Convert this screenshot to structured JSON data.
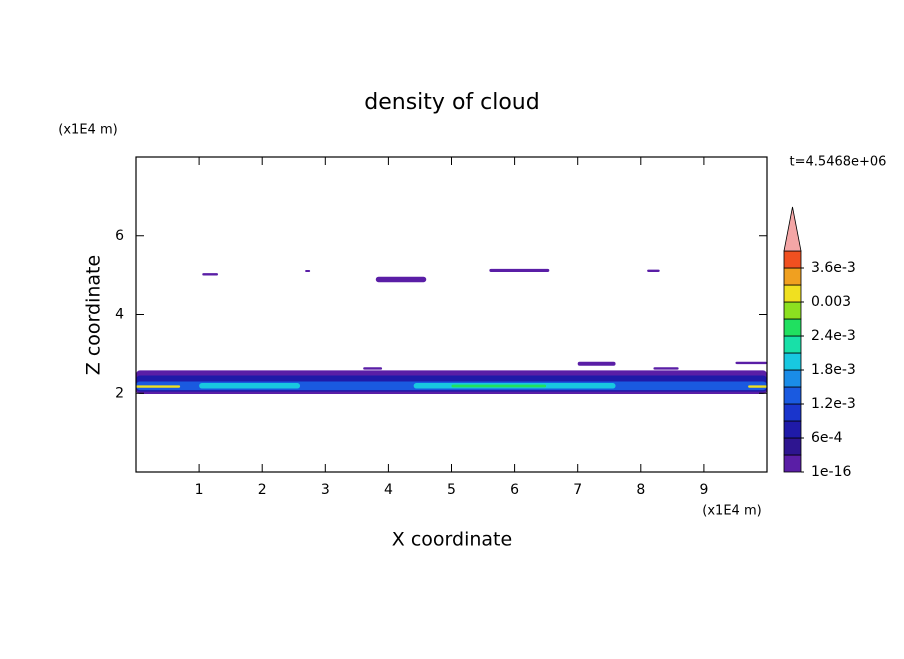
{
  "chart_data": {
    "type": "contour",
    "title": "density of cloud",
    "x_label": "X coordinate",
    "y_label": "Z coordinate",
    "x_unit": "(x1E4 m)",
    "y_unit": "(x1E4 m)",
    "time_label": "t=4.5468e+06",
    "xlim": [
      0,
      10
    ],
    "ylim": [
      0,
      8
    ],
    "xticks": [
      1,
      2,
      3,
      4,
      5,
      6,
      7,
      8,
      9
    ],
    "yticks": [
      2,
      4,
      6
    ],
    "levels": [
      1e-16,
      0.0003,
      0.0006,
      0.0009,
      0.0012,
      0.0015,
      0.0018,
      0.0021,
      0.0024,
      0.0027,
      0.003,
      0.0033,
      0.0036
    ],
    "colors": [
      "#5a1ea6",
      "#2e1590",
      "#1f1aa8",
      "#1a35cc",
      "#1a5ae0",
      "#1a8ce8",
      "#18c8e0",
      "#18e0a8",
      "#20e060",
      "#8ce020",
      "#f0e020",
      "#f0a020",
      "#f05020"
    ],
    "clim": [
      1e-16,
      0.0039
    ],
    "extend_color": "#f4a6a6",
    "cbar_ticks": [
      1e-16,
      0.0006,
      0.0012,
      0.0018,
      0.0024,
      0.003,
      0.0036
    ],
    "cbar_tick_labels": [
      "1e-16",
      "6e-4",
      "1.2e-3",
      "1.8e-3",
      "2.4e-3",
      "0.003",
      "3.6e-3"
    ],
    "regions": [
      {
        "x": [
          0,
          10
        ],
        "z": [
          1.98,
          2.58
        ],
        "level": 1e-16
      },
      {
        "x": [
          0,
          10
        ],
        "z": [
          2.04,
          2.45
        ],
        "level": 0.0006
      },
      {
        "x": [
          0,
          10
        ],
        "z": [
          2.08,
          2.3
        ],
        "level": 0.0012
      },
      {
        "x": [
          1.0,
          2.6
        ],
        "z": [
          2.12,
          2.26
        ],
        "level": 0.0018
      },
      {
        "x": [
          4.4,
          7.6
        ],
        "z": [
          2.12,
          2.26
        ],
        "level": 0.0018
      },
      {
        "x": [
          5.0,
          6.5
        ],
        "z": [
          2.15,
          2.22
        ],
        "level": 0.0024
      },
      {
        "x": [
          0,
          0.7
        ],
        "z": [
          2.14,
          2.2
        ],
        "level": 0.003
      },
      {
        "x": [
          9.7,
          10
        ],
        "z": [
          2.14,
          2.2
        ],
        "level": 0.003
      },
      {
        "x": [
          3.6,
          3.9
        ],
        "z": [
          2.6,
          2.66
        ],
        "level": 1e-16
      },
      {
        "x": [
          7.0,
          7.6
        ],
        "z": [
          2.7,
          2.8
        ],
        "level": 1e-16
      },
      {
        "x": [
          8.2,
          8.6
        ],
        "z": [
          2.6,
          2.66
        ],
        "level": 1e-16
      },
      {
        "x": [
          9.5,
          10
        ],
        "z": [
          2.74,
          2.8
        ],
        "level": 1e-16
      },
      {
        "x": [
          1.05,
          1.3
        ],
        "z": [
          4.99,
          5.05
        ],
        "level": 1e-16
      },
      {
        "x": [
          2.68,
          2.76
        ],
        "z": [
          5.08,
          5.13
        ],
        "level": 1e-16
      },
      {
        "x": [
          3.8,
          4.6
        ],
        "z": [
          4.82,
          4.96
        ],
        "level": 1e-16
      },
      {
        "x": [
          5.6,
          6.55
        ],
        "z": [
          5.08,
          5.16
        ],
        "level": 1e-16
      },
      {
        "x": [
          8.1,
          8.3
        ],
        "z": [
          5.08,
          5.14
        ],
        "level": 1e-16
      }
    ]
  }
}
